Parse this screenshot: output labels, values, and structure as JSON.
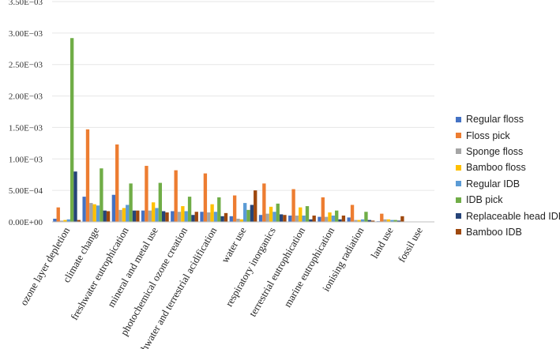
{
  "chart_data": {
    "type": "bar",
    "title": "",
    "xlabel": "",
    "ylabel": "",
    "ylim": [
      0,
      0.0035
    ],
    "yticks": [
      "0.00E+00",
      "5.00E−04",
      "1.00E−03",
      "1.50E−03",
      "2.00E−03",
      "2.50E−03",
      "3.00E−03",
      "3.50E−03"
    ],
    "categories": [
      "ozone layer depletion",
      "climate change",
      "freshwater eutrophication",
      "mineral and metal use",
      "photochemical ozone creation",
      "freshwater and terrestrial acidification",
      "water use",
      "respiratory inorganics",
      "terrestrial eutrophication",
      "marine eutrophication",
      "ionising radiation",
      "land use",
      "fossil use"
    ],
    "legend_position": "right",
    "series": [
      {
        "name": "Regular floss",
        "color": "#4472C4",
        "values": [
          5e-05,
          0.0004,
          0.00043,
          0.00018,
          0.00017,
          0.00016,
          9e-05,
          0.00011,
          0.0001,
          8e-05,
          7e-05,
          1e-05,
          0
        ]
      },
      {
        "name": "Floss pick",
        "color": "#ED7D31",
        "values": [
          0.00023,
          0.00147,
          0.00123,
          0.00089,
          0.00082,
          0.00077,
          0.00042,
          0.00061,
          0.00052,
          0.00039,
          0.00027,
          0.00013,
          0
        ]
      },
      {
        "name": "Sponge floss",
        "color": "#A5A5A5",
        "values": [
          2e-05,
          0.0003,
          0.00019,
          0.00018,
          0.00016,
          0.00015,
          5e-05,
          0.00013,
          0.0001,
          8e-05,
          3e-05,
          4e-05,
          0
        ]
      },
      {
        "name": "Bamboo floss",
        "color": "#FFC000",
        "values": [
          3e-05,
          0.00028,
          0.00022,
          0.00031,
          0.00025,
          0.00028,
          4e-05,
          0.00024,
          0.00023,
          0.00015,
          3e-05,
          4e-05,
          0
        ]
      },
      {
        "name": "Regular IDB",
        "color": "#5B9BD5",
        "values": [
          4e-05,
          0.00026,
          0.00027,
          0.00022,
          0.00017,
          0.00016,
          0.0003,
          0.00016,
          0.0001,
          0.0001,
          4e-05,
          3e-05,
          0
        ]
      },
      {
        "name": "IDB pick",
        "color": "#70AD47",
        "values": [
          0.00292,
          0.00085,
          0.00061,
          0.00062,
          0.0004,
          0.00039,
          0.00019,
          0.00029,
          0.00025,
          0.00018,
          0.00016,
          3e-05,
          0
        ]
      },
      {
        "name": "Replaceable head IDB",
        "color": "#264478",
        "values": [
          0.0008,
          0.00018,
          0.00018,
          0.00017,
          0.00011,
          9e-05,
          0.00027,
          0.00012,
          4e-05,
          4e-05,
          3e-05,
          2e-05,
          0
        ]
      },
      {
        "name": "Bamboo IDB",
        "color": "#9E480E",
        "values": [
          3e-05,
          0.00017,
          0.00018,
          0.00015,
          0.00016,
          0.00014,
          0.0005,
          0.00011,
          0.0001,
          0.0001,
          2e-05,
          9e-05,
          0
        ]
      }
    ]
  }
}
